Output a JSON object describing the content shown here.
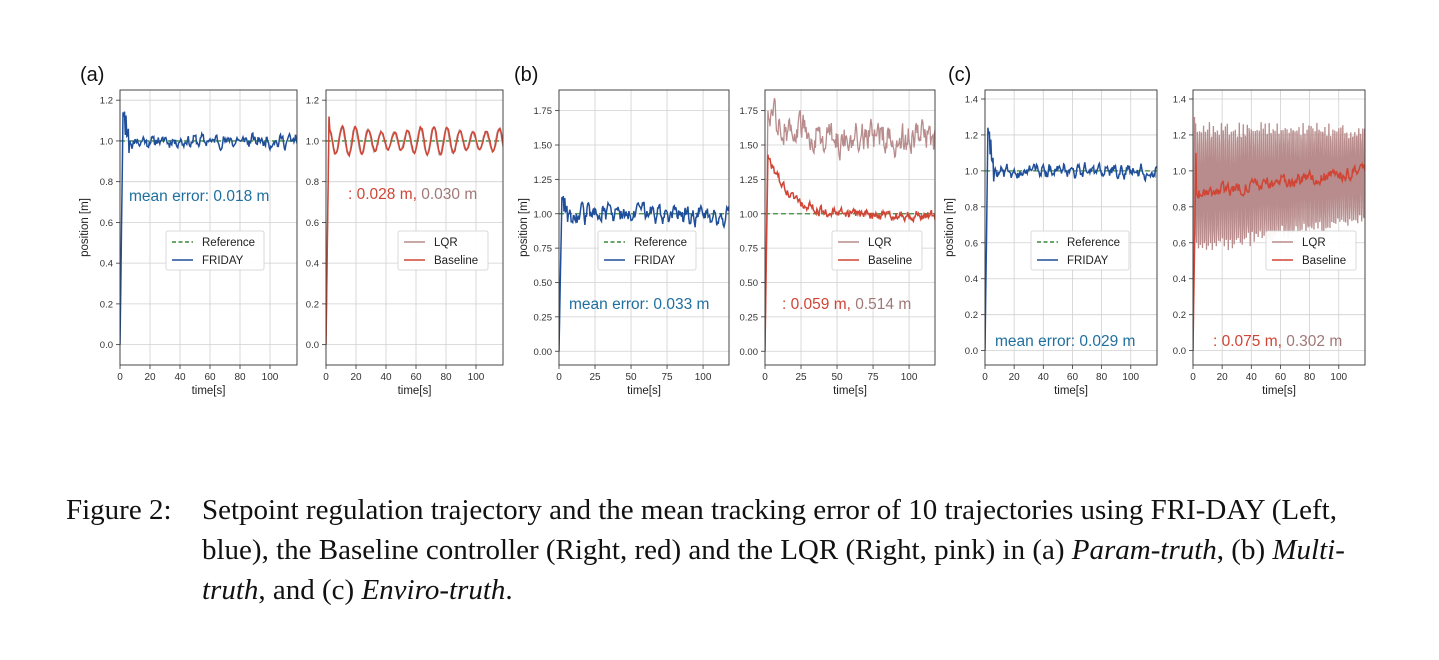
{
  "figure": {
    "panel_labels": [
      "(a)",
      "(b)",
      "(c)"
    ],
    "colors": {
      "friday": "#1f4e9a",
      "baseline": "#d04535",
      "lqr": "#b88c8c",
      "reference": "#3a8a3a",
      "friday_text": "#1f6f9f",
      "grid": "#d0d0d0"
    }
  },
  "chart_data": [
    {
      "type": "line",
      "panel": "(a)",
      "side": "left",
      "xlabel": "time[s]",
      "ylabel": "position [m]",
      "xlim": [
        0,
        118
      ],
      "ylim": [
        -0.1,
        1.25
      ],
      "xticks": [
        0,
        20,
        40,
        60,
        80,
        100
      ],
      "yticks": [
        0.0,
        0.2,
        0.4,
        0.6,
        0.8,
        1.0,
        1.2
      ],
      "ytick_labels": [
        "0.0",
        "0.2",
        "0.4",
        "0.6",
        "0.8",
        "1.0",
        "1.2"
      ],
      "legend": [
        "Reference",
        "FRIDAY"
      ],
      "annotation": {
        "label": "mean error: 0.018 m"
      },
      "reference": 1.0,
      "series": [
        {
          "name": "FRIDAY",
          "peak": 1.14,
          "noise": 0.022
        }
      ]
    },
    {
      "type": "line",
      "panel": "(a)",
      "side": "right",
      "xlabel": "time[s]",
      "ylabel": "",
      "xlim": [
        0,
        118
      ],
      "ylim": [
        -0.1,
        1.25
      ],
      "xticks": [
        0,
        20,
        40,
        60,
        80,
        100
      ],
      "yticks": [
        0.0,
        0.2,
        0.4,
        0.6,
        0.8,
        1.0,
        1.2
      ],
      "ytick_labels": [
        "0.0",
        "0.2",
        "0.4",
        "0.6",
        "0.8",
        "1.0",
        "1.2"
      ],
      "legend": [
        "LQR",
        "Baseline"
      ],
      "annotation": {
        "prefix": ": ",
        "baseline": "0.028 m,",
        "lqr": " 0.030 m"
      },
      "reference": 1.0,
      "series": [
        {
          "name": "LQR",
          "peak": 1.12,
          "osc_amp": 0.07
        },
        {
          "name": "Baseline",
          "peak": 1.12,
          "osc_amp": 0.07
        }
      ]
    },
    {
      "type": "line",
      "panel": "(b)",
      "side": "left",
      "xlabel": "time[s]",
      "ylabel": "position [m]",
      "xlim": [
        0,
        118
      ],
      "ylim": [
        -0.1,
        1.9
      ],
      "xticks": [
        0,
        25,
        50,
        75,
        100
      ],
      "yticks": [
        0.0,
        0.25,
        0.5,
        0.75,
        1.0,
        1.25,
        1.5,
        1.75
      ],
      "ytick_labels": [
        "0.00",
        "0.25",
        "0.50",
        "0.75",
        "1.00",
        "1.25",
        "1.50",
        "1.75"
      ],
      "legend": [
        "Reference",
        "FRIDAY"
      ],
      "annotation": {
        "label": "mean error: 0.033 m"
      },
      "reference": 1.0,
      "series": [
        {
          "name": "FRIDAY",
          "peak": 1.12,
          "noise": 0.05
        }
      ]
    },
    {
      "type": "line",
      "panel": "(b)",
      "side": "right",
      "xlabel": "time[s]",
      "ylabel": "",
      "xlim": [
        0,
        118
      ],
      "ylim": [
        -0.1,
        1.9
      ],
      "xticks": [
        0,
        25,
        50,
        75,
        100
      ],
      "yticks": [
        0.0,
        0.25,
        0.5,
        0.75,
        1.0,
        1.25,
        1.5,
        1.75
      ],
      "ytick_labels": [
        "0.00",
        "0.25",
        "0.50",
        "0.75",
        "1.00",
        "1.25",
        "1.50",
        "1.75"
      ],
      "legend": [
        "LQR",
        "Baseline"
      ],
      "annotation": {
        "prefix": ": ",
        "baseline": "0.059 m,",
        "lqr": " 0.514 m"
      },
      "reference": 1.0,
      "series": [
        {
          "name": "LQR",
          "peak": 1.75,
          "level": 1.55,
          "noise": 0.1
        },
        {
          "name": "Baseline",
          "peak": 1.43,
          "level": 0.99,
          "noise": 0.03
        }
      ]
    },
    {
      "type": "line",
      "panel": "(c)",
      "side": "left",
      "xlabel": "time[s]",
      "ylabel": "position [m]",
      "xlim": [
        0,
        118
      ],
      "ylim": [
        -0.08,
        1.45
      ],
      "xticks": [
        0,
        20,
        40,
        60,
        80,
        100
      ],
      "yticks": [
        0.0,
        0.2,
        0.4,
        0.6,
        0.8,
        1.0,
        1.2,
        1.4
      ],
      "ytick_labels": [
        "0.0",
        "0.2",
        "0.4",
        "0.6",
        "0.8",
        "1.0",
        "1.2",
        "1.4"
      ],
      "legend": [
        "Reference",
        "FRIDAY"
      ],
      "annotation": {
        "label": "mean error: 0.029 m"
      },
      "reference": 1.0,
      "series": [
        {
          "name": "FRIDAY",
          "peak": 1.24,
          "noise": 0.025
        }
      ]
    },
    {
      "type": "line",
      "panel": "(c)",
      "side": "right",
      "xlabel": "time[s]",
      "ylabel": "",
      "xlim": [
        0,
        118
      ],
      "ylim": [
        -0.08,
        1.45
      ],
      "xticks": [
        0,
        20,
        40,
        60,
        80,
        100
      ],
      "yticks": [
        0.0,
        0.2,
        0.4,
        0.6,
        0.8,
        1.0,
        1.2,
        1.4
      ],
      "ytick_labels": [
        "0.0",
        "0.2",
        "0.4",
        "0.6",
        "0.8",
        "1.0",
        "1.2",
        "1.4"
      ],
      "legend": [
        "LQR",
        "Baseline"
      ],
      "annotation": {
        "prefix": ": ",
        "baseline": "0.075 m,",
        "lqr": " 0.302 m"
      },
      "reference": 1.0,
      "series": [
        {
          "name": "LQR",
          "peak": 1.3,
          "osc_amp": 0.35
        },
        {
          "name": "Baseline",
          "peak": 1.1,
          "start_level": 0.88,
          "end_level": 0.99,
          "noise": 0.03
        }
      ]
    }
  ],
  "caption": {
    "number": "Figure 2:",
    "text_1": "Setpoint regulation trajectory and the mean tracking error of 10 trajectories using FRI-DAY (Left, blue), the Baseline controller (Right, red) and the LQR (Right, pink) in (a) ",
    "env_a": "Param-truth",
    "text_2": ", (b) ",
    "env_b": "Multi-truth",
    "text_3": ", and (c) ",
    "env_c": "Enviro-truth",
    "text_4": "."
  }
}
